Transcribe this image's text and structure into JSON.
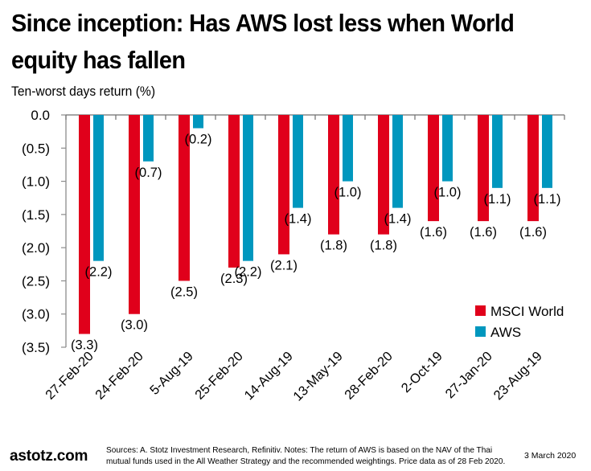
{
  "header": {
    "title": "Since inception: Has AWS lost less when World equity has fallen",
    "subtitle": "Ten-worst days return (%)"
  },
  "footer": {
    "brand": "astotz.com",
    "notes": "Sources: A. Stotz Investment Research, Refinitiv. Notes: The return of AWS is based on the NAV of the Thai mutual funds used in the All Weather Strategy and the recommended weightings. Price data as of 28 Feb 2020.",
    "date": "3 March 2020"
  },
  "colors": {
    "msci": "#E0001B",
    "aws": "#0097BE",
    "axis": "#8C8C8C"
  },
  "chart_data": {
    "type": "bar",
    "title": "Since inception: Has AWS lost less when World equity has fallen",
    "ylabel": "Ten-worst days return (%)",
    "xlabel": "",
    "categories": [
      "27-Feb-20",
      "24-Feb-20",
      "5-Aug-19",
      "25-Feb-20",
      "14-Aug-19",
      "13-May-19",
      "28-Feb-20",
      "2-Oct-19",
      "27-Jan-20",
      "23-Aug-19"
    ],
    "series": [
      {
        "name": "MSCI World",
        "values": [
          -3.3,
          -3.0,
          -2.5,
          -2.3,
          -2.1,
          -1.8,
          -1.8,
          -1.6,
          -1.6,
          -1.6
        ],
        "labels": [
          "(3.3)",
          "(3.0)",
          "(2.5)",
          "(2.3)",
          "(2.1)",
          "(1.8)",
          "(1.8)",
          "(1.6)",
          "(1.6)",
          "(1.6)"
        ]
      },
      {
        "name": "AWS",
        "values": [
          -2.2,
          -0.7,
          -0.2,
          -2.2,
          -1.4,
          -1.0,
          -1.4,
          -1.0,
          -1.1,
          -1.1
        ],
        "labels": [
          "(2.2)",
          "(0.7)",
          "(0.2)",
          "(2.2)",
          "(1.4)",
          "(1.0)",
          "(1.4)",
          "(1.0)",
          "(1.1)",
          "(1.1)"
        ]
      }
    ],
    "ylim": [
      -3.5,
      0
    ],
    "yticks": [
      0,
      -0.5,
      -1.0,
      -1.5,
      -2.0,
      -2.5,
      -3.0,
      -3.5
    ],
    "ytick_labels": [
      "0.0",
      "(0.5)",
      "(1.0)",
      "(1.5)",
      "(2.0)",
      "(2.5)",
      "(3.0)",
      "(3.5)"
    ],
    "legend": {
      "entries": [
        "MSCI World",
        "AWS"
      ],
      "placement": "bottom-right"
    },
    "grid": false
  }
}
